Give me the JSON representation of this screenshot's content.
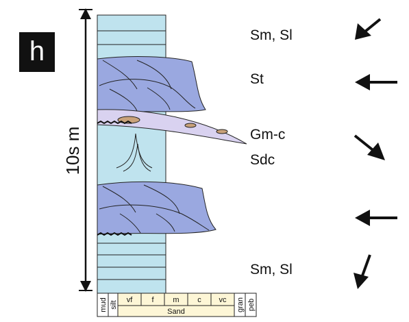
{
  "panel_label": "h",
  "scale_label": "10s m",
  "facies": [
    {
      "label": "Sm, Sl"
    },
    {
      "label": "St"
    },
    {
      "label": "Gm-c"
    },
    {
      "label": "Sdc"
    },
    {
      "label": "Sm, Sl"
    }
  ],
  "grain_sizes": [
    "mud",
    "silt",
    "vf",
    "f",
    "m",
    "c",
    "vc",
    "gran",
    "peb"
  ],
  "sand_label": "Sand"
}
